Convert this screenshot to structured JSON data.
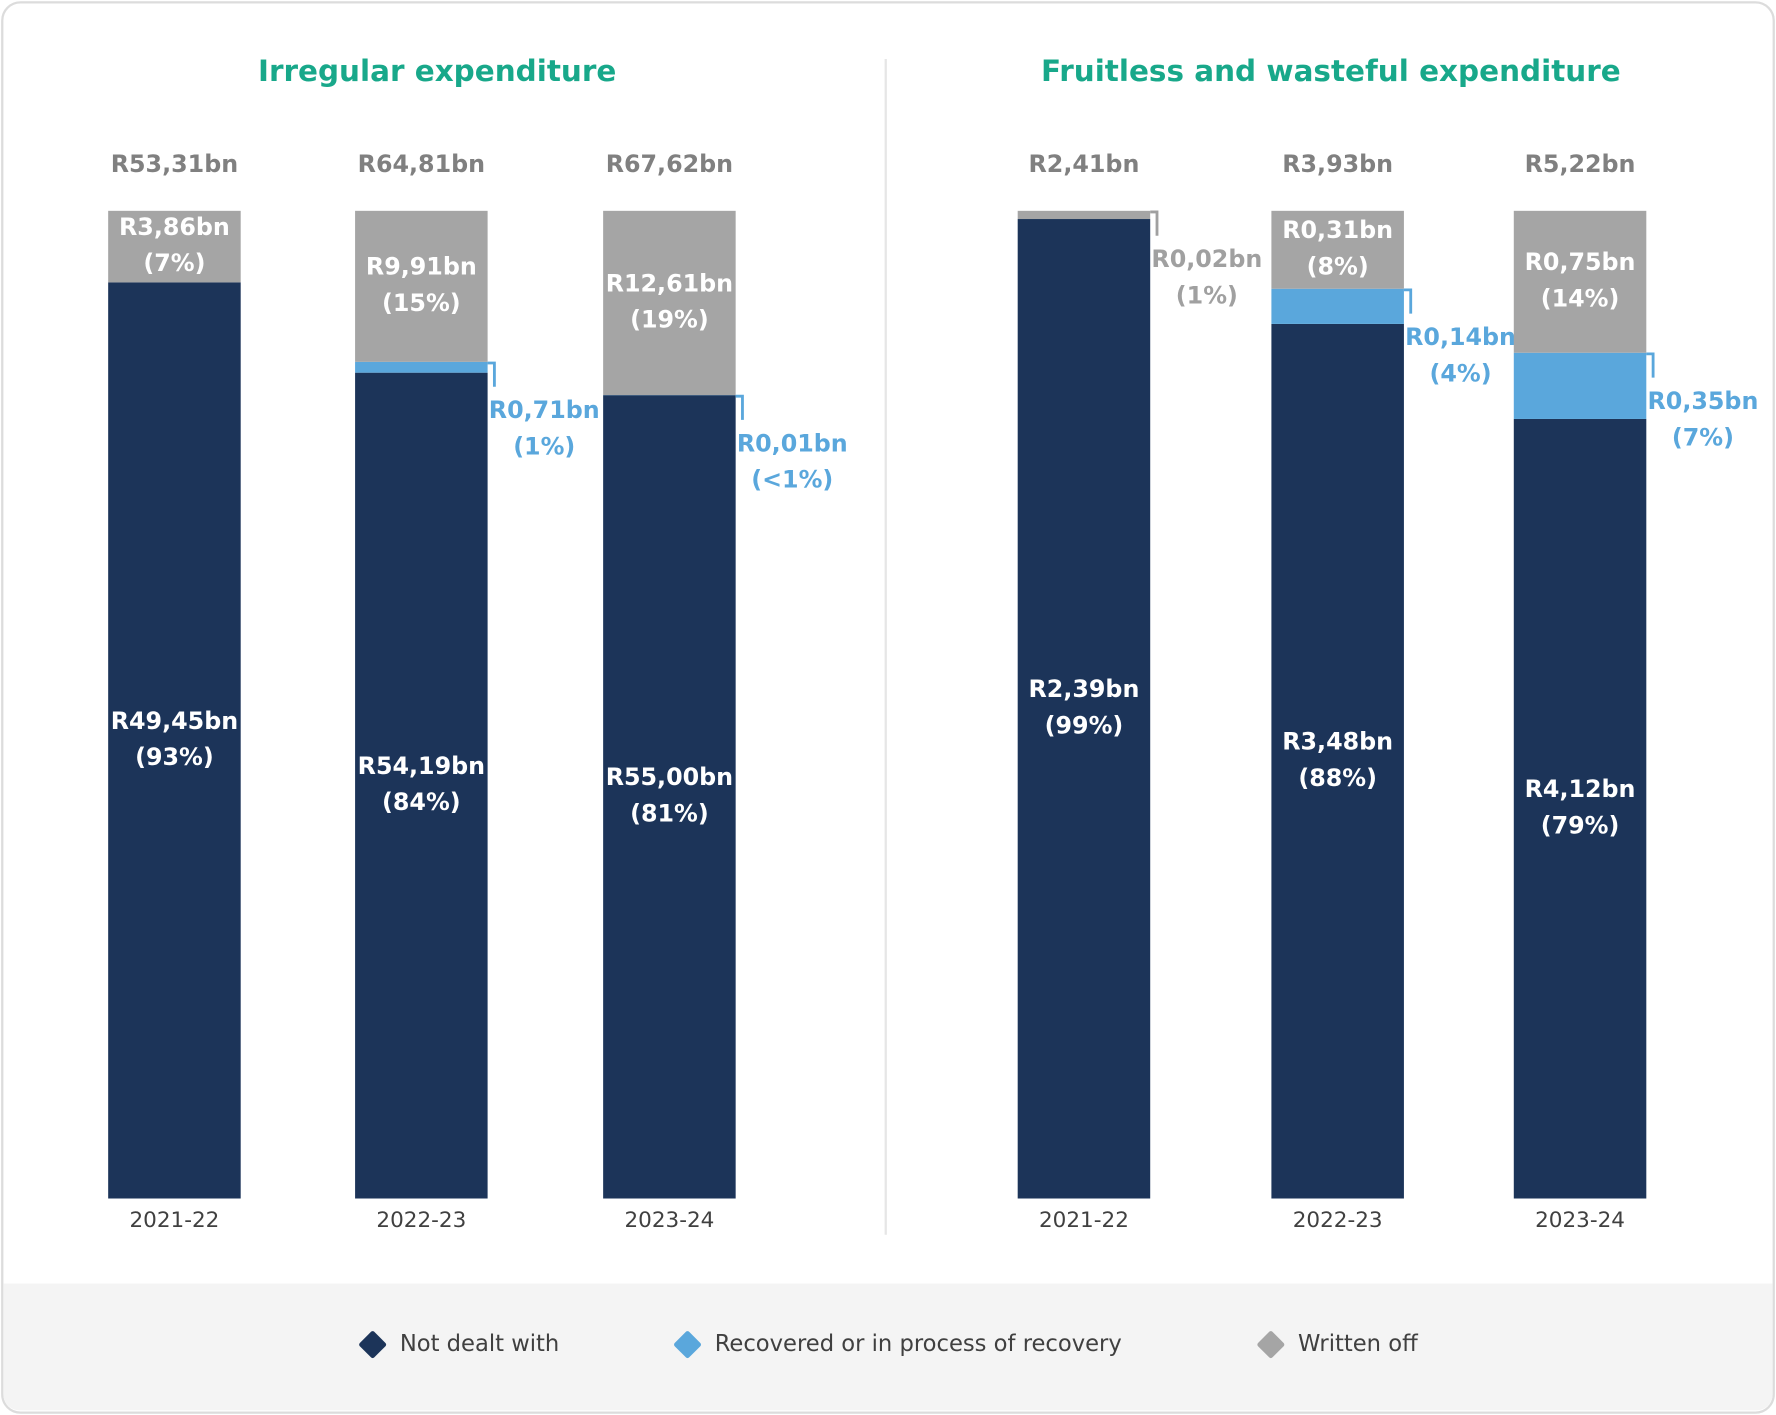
{
  "legend": [
    {
      "name": "Not dealt with",
      "color": "#1c3459"
    },
    {
      "name": "Recovered or in process of recovery",
      "color": "#5aa7dc"
    },
    {
      "name": "Written off",
      "color": "#a5a5a5"
    }
  ],
  "chart_data": [
    {
      "type": "bar",
      "stacked": true,
      "normalized": true,
      "title": "Irregular expenditure",
      "categories": [
        "2021-22",
        "2022-23",
        "2023-24"
      ],
      "totals": [
        "R53,31bn",
        "R64,81bn",
        "R67,62bn"
      ],
      "series": [
        {
          "values": [
            49.45,
            54.19,
            55.0
          ],
          "value_labels": [
            "R49,45bn",
            "R54,19bn",
            "R55,00bn"
          ],
          "percent_labels": [
            "(93%)",
            "(84%)",
            "(81%)"
          ]
        },
        {
          "values": [
            null,
            0.71,
            0.01
          ],
          "value_labels": [
            null,
            "R0,71bn",
            "R0,01bn"
          ],
          "percent_labels": [
            null,
            "(1%)",
            "(<1%)"
          ]
        },
        {
          "values": [
            3.86,
            9.91,
            12.61
          ],
          "value_labels": [
            "R3,86bn",
            "R9,91bn",
            "R12,61bn"
          ],
          "percent_labels": [
            "(7%)",
            "(15%)",
            "(19%)"
          ]
        }
      ]
    },
    {
      "type": "bar",
      "stacked": true,
      "normalized": true,
      "title": "Fruitless and wasteful expenditure",
      "categories": [
        "2021-22",
        "2022-23",
        "2023-24"
      ],
      "totals": [
        "R2,41bn",
        "R3,93bn",
        "R5,22bn"
      ],
      "series": [
        {
          "values": [
            2.39,
            3.48,
            4.12
          ],
          "value_labels": [
            "R2,39bn",
            "R3,48bn",
            "R4,12bn"
          ],
          "percent_labels": [
            "(99%)",
            "(88%)",
            "(79%)"
          ]
        },
        {
          "values": [
            null,
            0.14,
            0.35
          ],
          "value_labels": [
            null,
            "R0,14bn",
            "R0,35bn"
          ],
          "percent_labels": [
            null,
            "(4%)",
            "(7%)"
          ]
        },
        {
          "values": [
            0.02,
            0.31,
            0.75
          ],
          "value_labels": [
            "R0,02bn",
            "R0,31bn",
            "R0,75bn"
          ],
          "percent_labels": [
            "(1%)",
            "(8%)",
            "(14%)"
          ]
        }
      ]
    }
  ]
}
